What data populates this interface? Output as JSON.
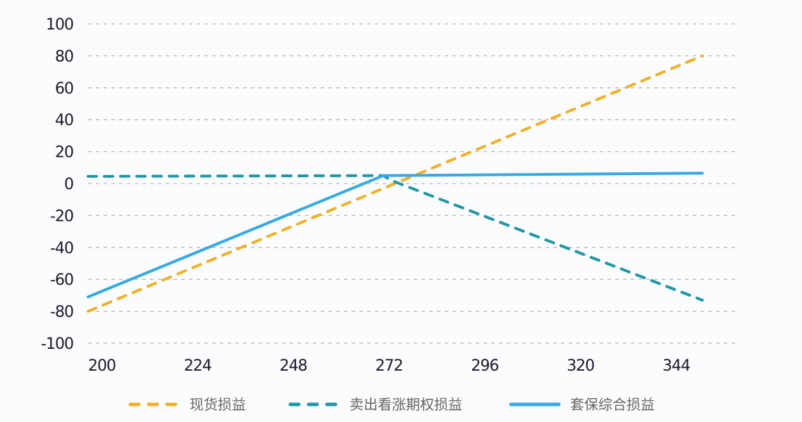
{
  "chart_data": {
    "type": "line",
    "title": "",
    "xlabel": "",
    "ylabel": "",
    "xlim": [
      200,
      356
    ],
    "ylim": [
      -100,
      100
    ],
    "x_ticks": [
      "200",
      "224",
      "248",
      "272",
      "296",
      "320",
      "344"
    ],
    "y_ticks": [
      "100",
      "80",
      "60",
      "40",
      "20",
      "0",
      "-20",
      "-40",
      "-60",
      "-80",
      "-100"
    ],
    "grid": "horizontal dashed",
    "legend_position": "bottom",
    "series": [
      {
        "name": "现货损益",
        "style": "dashed",
        "color": "#f0b129",
        "points": [
          [
            200,
            -80
          ],
          [
            274,
            -3
          ],
          [
            354,
            80
          ]
        ]
      },
      {
        "name": "卖出看涨期权损益",
        "style": "dashed",
        "color": "#1f97a8",
        "points": [
          [
            200,
            4.5
          ],
          [
            274,
            5
          ],
          [
            276,
            2
          ],
          [
            354,
            -73
          ]
        ]
      },
      {
        "name": "套保综合损益",
        "style": "solid",
        "color": "#36a9e6",
        "points": [
          [
            200,
            -71
          ],
          [
            274,
            5
          ],
          [
            354,
            6.5
          ]
        ]
      }
    ]
  }
}
